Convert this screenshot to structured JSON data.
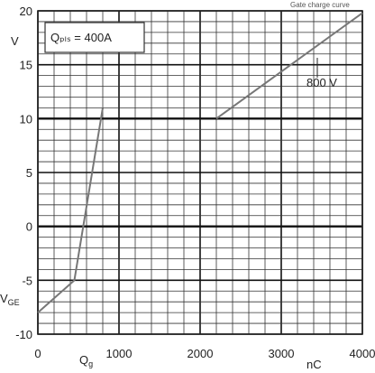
{
  "chart_data": {
    "type": "line",
    "source_tag": "Gate charge curve",
    "annotation_box": "Qₚₗₛ = 400A",
    "annotation_voltage": "800 V",
    "y_unit_label": "V",
    "vge_label": "V",
    "vge_sub": "GE",
    "qg_label": "Q",
    "qg_sub": "g",
    "x_unit_label": "nC",
    "x_ticks": [
      "0",
      "1000",
      "2000",
      "3000",
      "4000"
    ],
    "y_ticks": [
      "-10",
      "-5",
      "0",
      "5",
      "10",
      "15",
      "20"
    ],
    "xlim": [
      0,
      4000
    ],
    "ylim": [
      -10,
      20
    ],
    "series": [
      {
        "x": [
          0,
          450,
          800
        ],
        "y": [
          -8,
          -5,
          11
        ],
        "color": "#777777"
      },
      {
        "x": [
          2200,
          4000
        ],
        "y": [
          10,
          19.8
        ],
        "color": "#777777"
      }
    ],
    "colors": {
      "grid": "#333333",
      "major": "#111111",
      "axes": "#222222"
    }
  }
}
